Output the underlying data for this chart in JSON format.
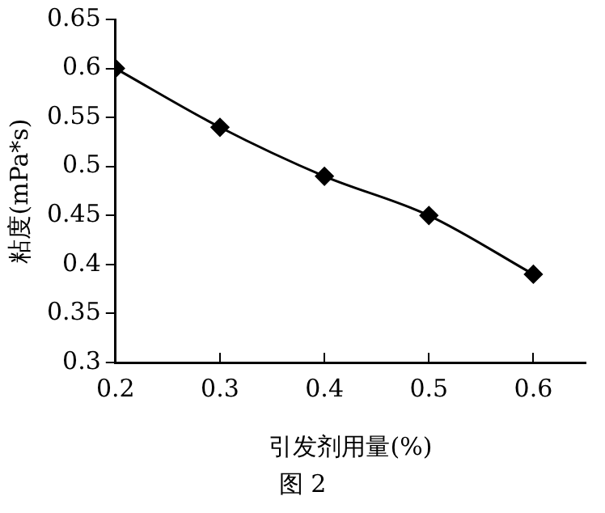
{
  "chart_data": {
    "type": "line",
    "xlabel": "引发剂用量(%)",
    "ylabel": "粘度(mPa*s)",
    "annotations": [
      "图 2"
    ],
    "x": [
      0.2,
      0.3,
      0.4,
      0.5,
      0.6
    ],
    "series": [
      {
        "color": "#000000",
        "values": [
          0.6,
          0.54,
          0.49,
          0.45,
          0.39
        ]
      }
    ],
    "xlim": [
      0.2,
      0.65
    ],
    "xticks": [
      0.2,
      0.3,
      0.4,
      0.5,
      0.6
    ],
    "ylim": [
      0.3,
      0.65
    ],
    "yticks": [
      0.3,
      0.35,
      0.4,
      0.45,
      0.5,
      0.55,
      0.6,
      0.65
    ],
    "grid": false,
    "legend": false,
    "marker": "diamond",
    "line_style": "solid"
  }
}
